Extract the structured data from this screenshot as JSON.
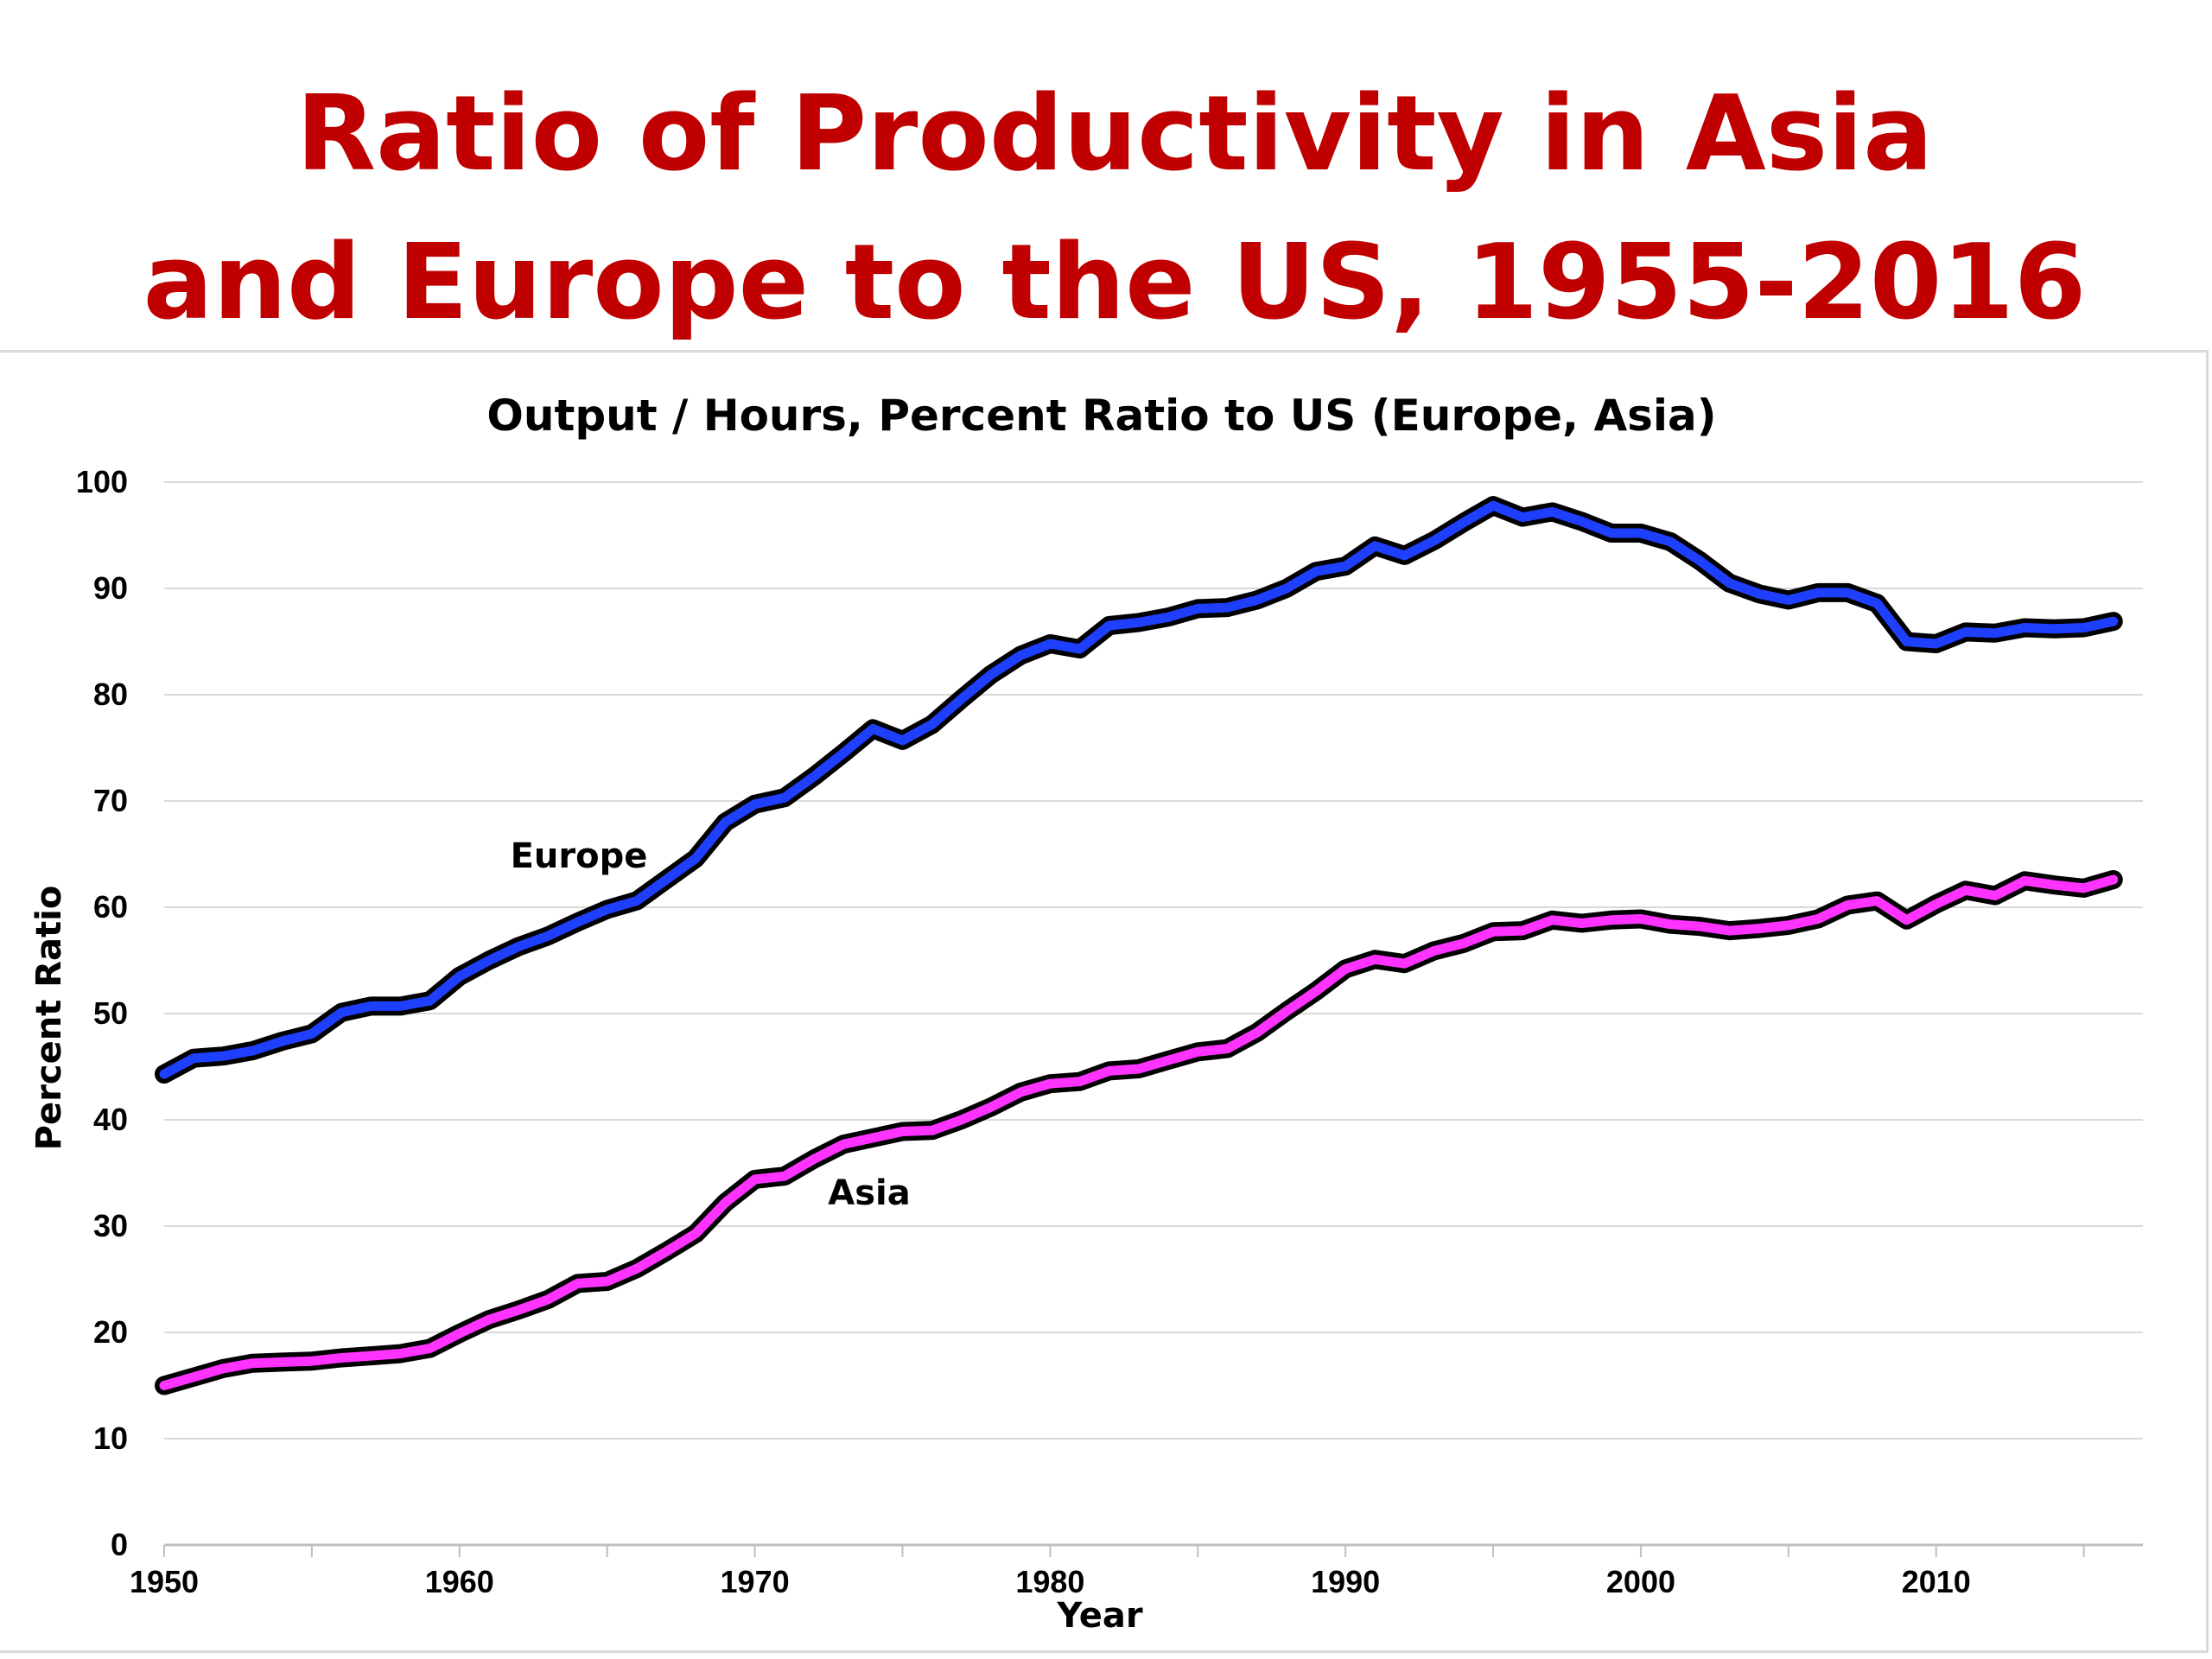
{
  "title_lines": [
    "Ratio of Productivity in Asia",
    "and Europe to the US, 1955-2016"
  ],
  "colors": {
    "title": "#c00000",
    "europe": "#1f3fff",
    "asia": "#ff33ff",
    "outline": "#000000",
    "grid": "#d9d9d9"
  },
  "chart_data": {
    "type": "line",
    "title": "Output / Hours, Percent Ratio to US (Europe, Asia)",
    "xlabel": "Year",
    "ylabel": "Percent Ratio",
    "xlim": [
      1950,
      2017
    ],
    "ylim": [
      0,
      100
    ],
    "grid": true,
    "xticks": [
      "1950",
      "1960",
      "1970",
      "1980",
      "1990",
      "2000",
      "2010"
    ],
    "yticks": [
      "0",
      "10",
      "20",
      "30",
      "40",
      "50",
      "60",
      "70",
      "80",
      "90",
      "100"
    ],
    "x": [
      1950,
      1951,
      1952,
      1953,
      1954,
      1955,
      1956,
      1957,
      1958,
      1959,
      1960,
      1961,
      1962,
      1963,
      1964,
      1965,
      1966,
      1967,
      1968,
      1969,
      1970,
      1971,
      1972,
      1973,
      1974,
      1975,
      1976,
      1977,
      1978,
      1979,
      1980,
      1981,
      1982,
      1983,
      1984,
      1985,
      1986,
      1987,
      1988,
      1989,
      1990,
      1991,
      1992,
      1993,
      1994,
      1995,
      1996,
      1997,
      1998,
      1999,
      2000,
      2001,
      2002,
      2003,
      2004,
      2005,
      2006,
      2007,
      2008,
      2009,
      2010,
      2011,
      2012,
      2013,
      2014,
      2015,
      2016
    ],
    "series": [
      {
        "name": "Europe",
        "values": [
          44.3,
          45.8,
          46.0,
          46.5,
          47.4,
          48.1,
          50.1,
          50.7,
          50.7,
          51.2,
          53.5,
          55.0,
          56.3,
          57.3,
          58.6,
          59.8,
          60.6,
          62.6,
          64.6,
          68.0,
          69.7,
          70.3,
          72.3,
          74.5,
          76.8,
          75.7,
          77.2,
          79.6,
          81.9,
          83.7,
          84.8,
          84.3,
          86.5,
          86.8,
          87.3,
          88.1,
          88.2,
          88.9,
          90.0,
          91.6,
          92.1,
          94.0,
          93.1,
          94.5,
          96.2,
          97.8,
          96.7,
          97.2,
          96.3,
          95.2,
          95.2,
          94.4,
          92.6,
          90.5,
          89.5,
          88.9,
          89.6,
          89.6,
          88.6,
          85.0,
          84.8,
          85.9,
          85.8,
          86.3,
          86.2,
          86.3,
          86.9
        ]
      },
      {
        "name": "Asia",
        "values": [
          15.0,
          15.8,
          16.6,
          17.1,
          17.2,
          17.3,
          17.6,
          17.8,
          18.0,
          18.5,
          19.9,
          21.2,
          22.1,
          23.1,
          24.6,
          24.8,
          26.0,
          27.6,
          29.3,
          32.2,
          34.4,
          34.7,
          36.3,
          37.7,
          38.3,
          38.9,
          39.0,
          40.0,
          41.2,
          42.6,
          43.4,
          43.6,
          44.6,
          44.8,
          45.6,
          46.4,
          46.7,
          48.2,
          50.2,
          52.1,
          54.2,
          55.1,
          54.7,
          55.9,
          56.6,
          57.7,
          57.8,
          58.8,
          58.5,
          58.8,
          58.9,
          58.4,
          58.2,
          57.8,
          58.0,
          58.3,
          58.9,
          60.2,
          60.6,
          58.8,
          60.3,
          61.6,
          61.1,
          62.5,
          62.1,
          61.8,
          62.6
        ]
      }
    ],
    "annotations": [
      "Europe",
      "Asia"
    ]
  }
}
